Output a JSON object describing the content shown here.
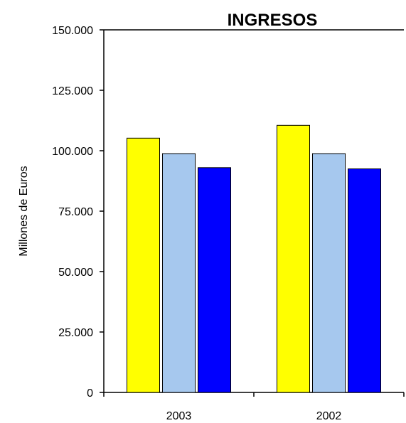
{
  "chart_data": {
    "type": "bar",
    "title": "INGRESOS",
    "xlabel": "",
    "ylabel": "Millones de Euros",
    "categories": [
      "2003",
      "2002"
    ],
    "series": [
      {
        "values": [
          105200,
          110500
        ],
        "color": "#FFFF00"
      },
      {
        "values": [
          98800,
          98800
        ],
        "color": "#A6C8EE"
      },
      {
        "values": [
          93000,
          92500
        ],
        "color": "#0000FF"
      }
    ],
    "ylim": [
      0,
      150000
    ],
    "yticks": [
      {
        "value": 0,
        "label": "0"
      },
      {
        "value": 25000,
        "label": "25.000"
      },
      {
        "value": 50000,
        "label": "50.000"
      },
      {
        "value": 75000,
        "label": "75.000"
      },
      {
        "value": 100000,
        "label": "100.000"
      },
      {
        "value": 125000,
        "label": "125.000"
      },
      {
        "value": 150000,
        "label": "150.000"
      }
    ],
    "grid": false,
    "legend": "none"
  }
}
